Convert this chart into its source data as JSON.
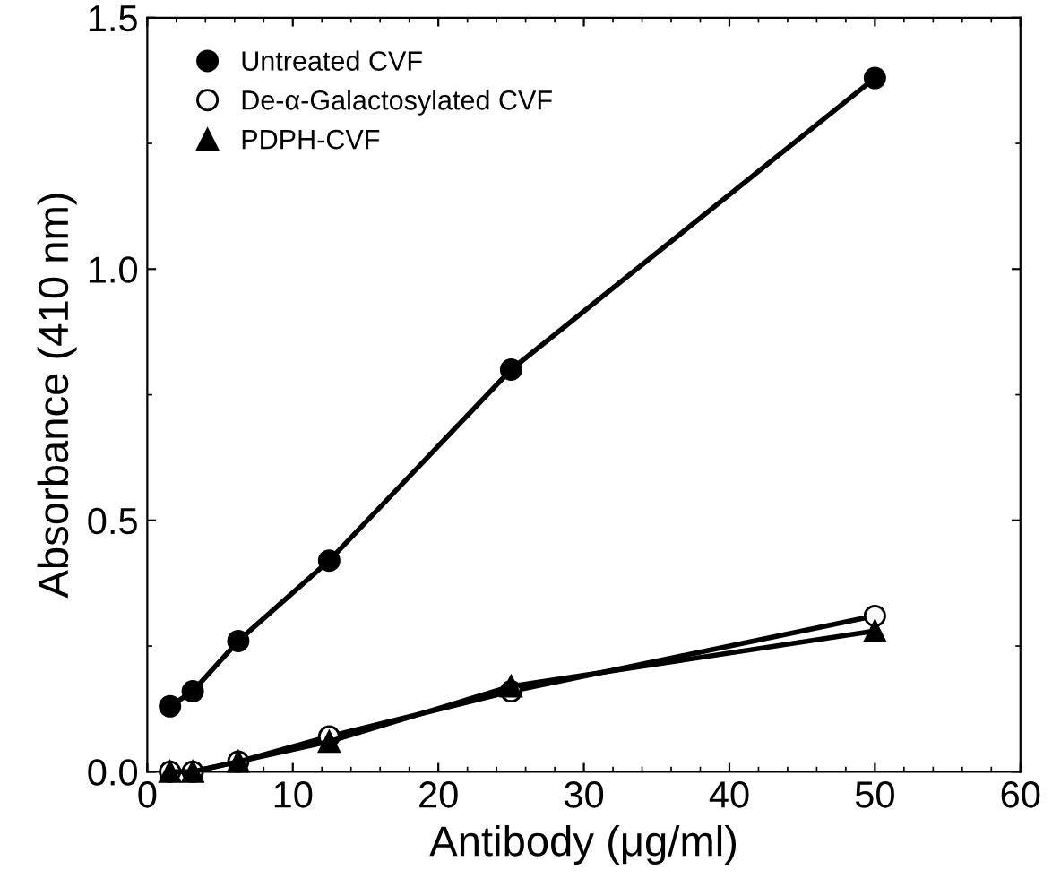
{
  "chart_data": {
    "type": "line",
    "xlabel": "Antibody (μg/ml)",
    "ylabel": "Absorbance (410 nm)",
    "x": [
      1.56,
      3.125,
      6.25,
      12.5,
      25,
      50
    ],
    "series": [
      {
        "name": "Untreated CVF",
        "color": "#000000",
        "marker": "circle",
        "values": [
          0.13,
          0.16,
          0.26,
          0.42,
          0.8,
          1.38
        ]
      },
      {
        "name": "De-α-Galactosylated CVF",
        "color": "#000000",
        "marker": "open_circle",
        "values": [
          0.0,
          0.0,
          0.02,
          0.07,
          0.16,
          0.31
        ]
      },
      {
        "name": "PDPH-CVF",
        "color": "#000000",
        "marker": "triangle",
        "values": [
          0.0,
          0.0,
          0.02,
          0.06,
          0.17,
          0.28
        ]
      }
    ],
    "xlim": [
      0,
      60
    ],
    "xticks": [
      0,
      10,
      20,
      30,
      40,
      50,
      60
    ],
    "ylim": [
      0,
      1.5
    ],
    "yticks": [
      {
        "value": 0,
        "label": "0.0"
      },
      0.5,
      {
        "value": 1,
        "label": "1.0"
      },
      1.5
    ],
    "grid": false,
    "legend": "top left",
    "line_style": "solid"
  }
}
